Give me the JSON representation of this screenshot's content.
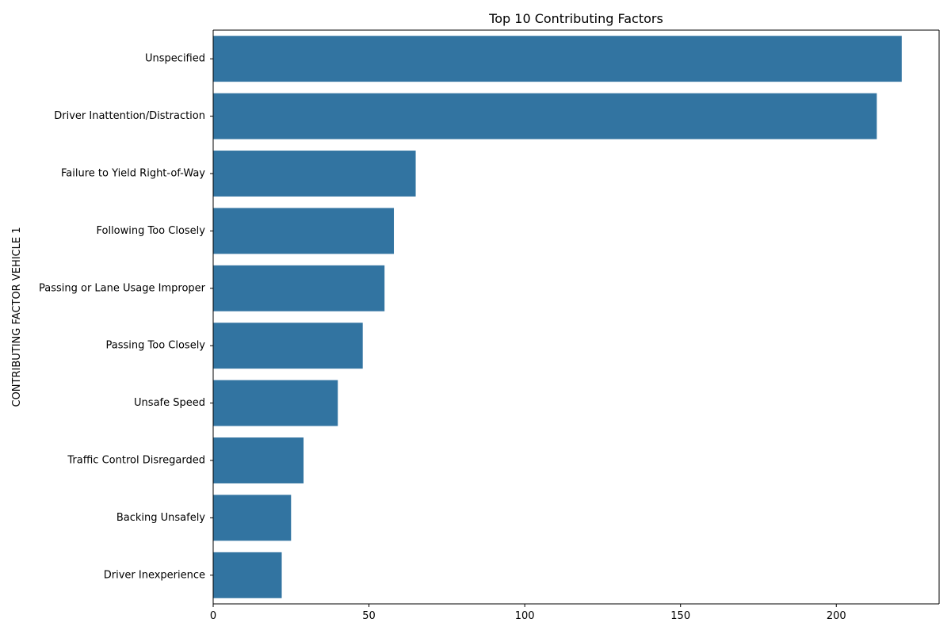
{
  "chart_data": {
    "type": "bar",
    "orientation": "horizontal",
    "title": "Top 10 Contributing Factors",
    "xlabel": "",
    "ylabel": "CONTRIBUTING FACTOR VEHICLE 1",
    "categories": [
      "Unspecified",
      "Driver Inattention/Distraction",
      "Failure to Yield Right-of-Way",
      "Following Too Closely",
      "Passing or Lane Usage Improper",
      "Passing Too Closely",
      "Unsafe Speed",
      "Traffic Control Disregarded",
      "Backing Unsafely",
      "Driver Inexperience"
    ],
    "values": [
      221,
      213,
      65,
      58,
      55,
      48,
      40,
      29,
      25,
      22
    ],
    "xlim": [
      0,
      233
    ],
    "xticks": [
      0,
      50,
      100,
      150,
      200
    ],
    "xtick_labels": [
      "0",
      "50",
      "100",
      "150",
      "200"
    ],
    "bar_color": "#3274a1",
    "grid": false,
    "legend": "none"
  }
}
